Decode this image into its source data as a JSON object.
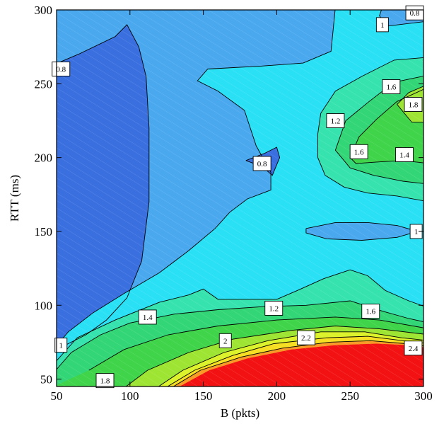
{
  "chart_data": {
    "type": "contour",
    "title": "",
    "xlabel": "B (pkts)",
    "ylabel": "RTT (ms)",
    "xlim": [
      50,
      300
    ],
    "ylim": [
      45,
      300
    ],
    "xticks": [
      50,
      100,
      150,
      200,
      250,
      300
    ],
    "yticks": [
      50,
      100,
      150,
      200,
      250,
      300
    ],
    "contour_levels": [
      0.8,
      1.0,
      1.2,
      1.4,
      1.6,
      1.8,
      2.0,
      2.2,
      2.4
    ],
    "colors": {
      "below_0.8": "#3a6fe0",
      "0.8_1.0": "#4aa8ef",
      "1.0_1.2": "#2ae0f5",
      "1.2_1.4": "#36e3ae",
      "1.4_1.6": "#33d676",
      "1.6_1.8": "#3fd44a",
      "1.8_2.0": "#9ee533",
      "2.0_2.2": "#dcf22a",
      "2.2_2.4": "#f6df22",
      "2.4_2.6": "#f79a26",
      "above_2.6": "#f31213"
    },
    "labels": [
      {
        "text": "0.8",
        "x": 53,
        "y": 260
      },
      {
        "text": "0.8",
        "x": 190,
        "y": 196
      },
      {
        "text": "0.8",
        "x": 294,
        "y": 298
      },
      {
        "text": "1",
        "x": 272,
        "y": 290
      },
      {
        "text": "1",
        "x": 295,
        "y": 150
      },
      {
        "text": "1",
        "x": 53,
        "y": 73
      },
      {
        "text": "1.2",
        "x": 240,
        "y": 225
      },
      {
        "text": "1.2",
        "x": 198,
        "y": 98
      },
      {
        "text": "1.4",
        "x": 287,
        "y": 202
      },
      {
        "text": "1.4",
        "x": 112,
        "y": 92
      },
      {
        "text": "1.6",
        "x": 278,
        "y": 248
      },
      {
        "text": "1.6",
        "x": 256,
        "y": 204
      },
      {
        "text": "1.6",
        "x": 264,
        "y": 96
      },
      {
        "text": "1.8",
        "x": 293,
        "y": 236
      },
      {
        "text": "1.8",
        "x": 83,
        "y": 49
      },
      {
        "text": "2",
        "x": 165,
        "y": 76
      },
      {
        "text": "2.2",
        "x": 220,
        "y": 78
      },
      {
        "text": "2.4",
        "x": 293,
        "y": 71
      }
    ]
  }
}
